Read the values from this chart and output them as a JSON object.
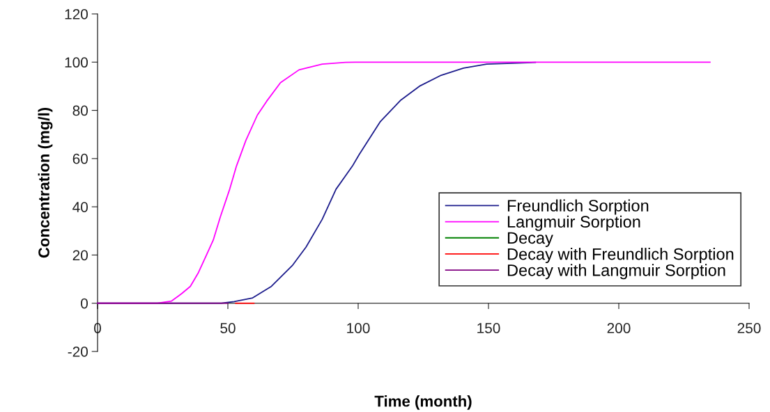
{
  "chart_data": {
    "type": "line",
    "xlabel": "Time (month)",
    "ylabel": "Concentration (mg/l)",
    "xlim": [
      0,
      250
    ],
    "xticks": [
      0,
      50,
      100,
      150,
      200,
      250
    ],
    "ylim": [
      -20,
      120
    ],
    "yticks": [
      -20,
      0,
      20,
      40,
      60,
      80,
      100,
      120
    ],
    "grid": false,
    "legend": "lower right",
    "marker": "none",
    "line_style": "solid",
    "series": [
      {
        "name": "Freundlich Sorption",
        "color": "#1c1c8c",
        "x": [
          0,
          47.5,
          52.4,
          59.5,
          66.7,
          74.7,
          80,
          86.2,
          91.5,
          97.8,
          100.4,
          108.4,
          116.4,
          123.5,
          131.5,
          140.4,
          149.3,
          168
        ],
        "values": [
          0,
          0,
          0.7,
          2.2,
          7,
          15.6,
          23.3,
          34.8,
          47.3,
          56.9,
          61.7,
          75.2,
          84.3,
          90,
          94.4,
          97.5,
          99.2,
          99.9
        ]
      },
      {
        "name": "Langmuir Sorption",
        "color": "#ff00ff",
        "x": [
          0,
          23,
          28.4,
          32.4,
          35.6,
          38.7,
          41.8,
          44.4,
          47.1,
          50.7,
          53.3,
          56.9,
          61.3,
          64.9,
          70.2,
          77.3,
          86.2,
          95.1,
          100,
          235
        ],
        "values": [
          0,
          0,
          0.9,
          4.1,
          7,
          12.7,
          20,
          26.2,
          35.8,
          47.3,
          56.9,
          67.5,
          78,
          83.8,
          91.5,
          96.8,
          99.2,
          99.9,
          100,
          100
        ]
      },
      {
        "name": "Decay",
        "color": "#008000"
      },
      {
        "name": "Decay with Freundlich Sorption",
        "color": "#ff0000",
        "x": [
          53,
          60
        ],
        "values": [
          0,
          0
        ]
      },
      {
        "name": "Decay with Langmuir Sorption",
        "color": "#800080",
        "x": [
          0,
          50
        ],
        "values": [
          0,
          0
        ]
      }
    ]
  }
}
